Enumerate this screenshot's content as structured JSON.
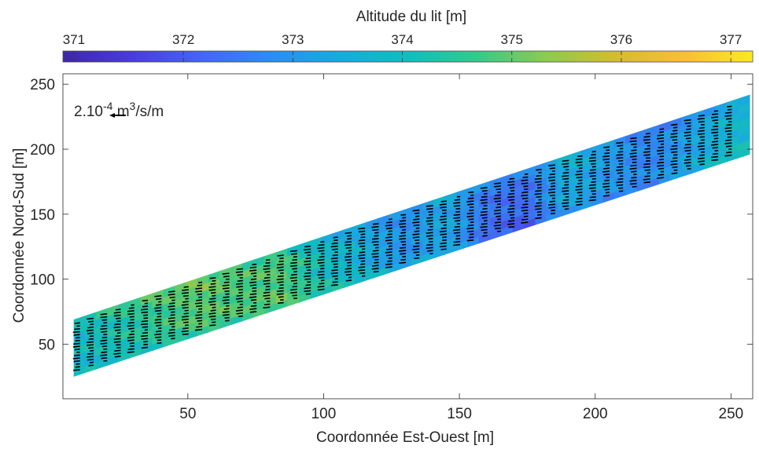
{
  "chart_data": {
    "type": "heatmap",
    "title": "",
    "xlabel": "Coordonnée Est-Ouest [m]",
    "ylabel": "Coordonnée Nord-Sud [m]",
    "xlim": [
      4,
      258
    ],
    "ylim": [
      8,
      258
    ],
    "xticks": [
      50,
      100,
      150,
      200,
      250
    ],
    "yticks": [
      50,
      100,
      150,
      200,
      250
    ],
    "colorbar": {
      "label": "Altitude du lit [m]",
      "position": "top",
      "range": [
        370.9,
        377.2
      ],
      "ticks": [
        371,
        372,
        373,
        374,
        375,
        376,
        377
      ],
      "colormap": "parula",
      "colors": [
        "#3e26a8",
        "#4a3cd8",
        "#4565f2",
        "#2d8cf0",
        "#1aa9df",
        "#12bcbe",
        "#36c98b",
        "#8bcb4f",
        "#d3bb35",
        "#fbbc3c",
        "#f9e926"
      ]
    },
    "domain_corners": [
      [
        8,
        25
      ],
      [
        8,
        69
      ],
      [
        257,
        242
      ],
      [
        257,
        196
      ]
    ],
    "bed_elevation_profile": {
      "along_channel_x": [
        10,
        25,
        40,
        55,
        70,
        85,
        100,
        115,
        130,
        145,
        160,
        175,
        190,
        205,
        220,
        235,
        250
      ],
      "altitude_m": [
        374.0,
        374.3,
        374.6,
        374.9,
        374.7,
        374.8,
        374.0,
        373.6,
        373.0,
        373.5,
        372.5,
        372.3,
        373.5,
        373.0,
        372.6,
        373.2,
        373.8
      ]
    },
    "vector_field": {
      "quantity": "bed-load transport",
      "units": "m3/s/m",
      "arrow_color": "#000000",
      "transect_spacing_x": 5,
      "points_per_transect": 18
    },
    "annotation": {
      "scale_prefix": "2.10",
      "scale_exp": "-4",
      "scale_unit": " m",
      "scale_unit_exp": "3",
      "scale_unit_rest": "/s/m"
    }
  }
}
